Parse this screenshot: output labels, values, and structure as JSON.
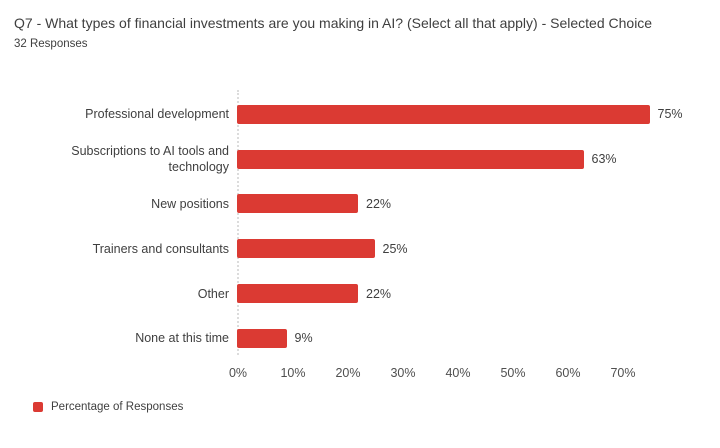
{
  "header": {
    "title": "Q7 - What types of financial investments are you making in AI? (Select all that apply) - Selected Choice",
    "responses": "32 Responses"
  },
  "chart_data": {
    "type": "bar",
    "orientation": "horizontal",
    "title": "Q7 - What types of financial investments are you making in AI? (Select all that apply) - Selected Choice",
    "subtitle": "32 Responses",
    "categories": [
      "Professional development",
      "Subscriptions to AI tools and technology",
      "New positions",
      "Trainers and consultants",
      "Other",
      "None at this time"
    ],
    "values": [
      75,
      63,
      22,
      25,
      22,
      9
    ],
    "value_labels": [
      "75%",
      "63%",
      "22%",
      "25%",
      "22%",
      "9%"
    ],
    "x_ticks": [
      "0%",
      "10%",
      "20%",
      "30%",
      "40%",
      "50%",
      "60%",
      "70%"
    ],
    "xlim": [
      0,
      80
    ],
    "grid": "zero-line-only",
    "bar_color": "#db3a33",
    "legend": {
      "position": "bottom-left",
      "label": "Percentage of Responses"
    }
  }
}
